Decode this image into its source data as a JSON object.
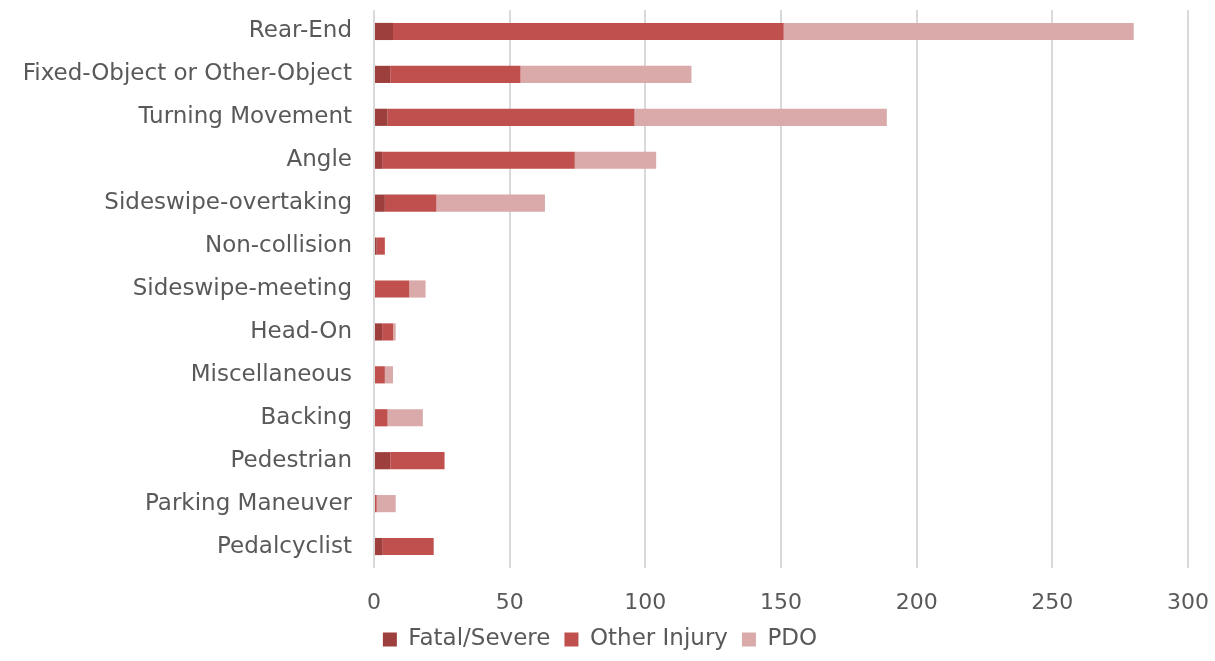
{
  "chart_data": {
    "type": "bar",
    "orientation": "horizontal",
    "stacked": true,
    "categories": [
      "Rear-End",
      "Fixed-Object or Other-Object",
      "Turning Movement",
      "Angle",
      "Sideswipe-overtaking",
      "Non-collision",
      "Sideswipe-meeting",
      "Head-On",
      "Miscellaneous",
      "Backing",
      "Pedestrian",
      "Parking Maneuver",
      "Pedalcyclist"
    ],
    "series": [
      {
        "name": "Fatal/Severe",
        "color": "#9c3f3d",
        "values": [
          7,
          6,
          5,
          3,
          4,
          1,
          0,
          3,
          0,
          0,
          6,
          0,
          3
        ]
      },
      {
        "name": "Other Injury",
        "color": "#c0504d",
        "values": [
          144,
          48,
          91,
          71,
          19,
          3,
          13,
          4,
          4,
          5,
          20,
          1,
          19
        ]
      },
      {
        "name": "PDO",
        "color": "#d9aaa9",
        "values": [
          129,
          63,
          93,
          30,
          40,
          0,
          6,
          1,
          3,
          13,
          0,
          7,
          0
        ]
      }
    ],
    "xlim": [
      0,
      300
    ],
    "xticks": [
      0,
      50,
      100,
      150,
      200,
      250,
      300
    ],
    "grid": "x",
    "legend": "bottom"
  }
}
